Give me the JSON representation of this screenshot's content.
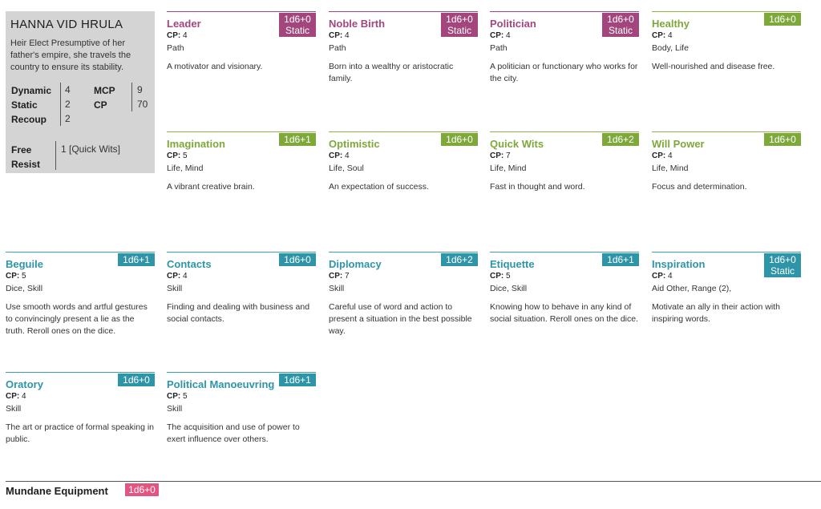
{
  "character": {
    "name": "HANNA VID HRULA",
    "description": "Heir Elect Presumptive of her father's empire, she travels the country to ensure its stability.",
    "stats": {
      "dynamic_label": "Dynamic",
      "dynamic": "4",
      "static_label": "Static",
      "static": "2",
      "recoup_label": "Recoup",
      "recoup": "2",
      "mcp_label": "MCP",
      "mcp": "9",
      "cp_label": "CP",
      "cp": "70"
    },
    "free_resist_label_1": "Free",
    "free_resist_label_2": "Resist",
    "free_resist": "1 [Quick Wits]"
  },
  "cp_label": "CP:",
  "cards": [
    {
      "title": "Leader",
      "badge_1": "1d6+0",
      "badge_2": "Static",
      "cp": "4",
      "tags": "Path",
      "desc": "A motivator and visionary.",
      "color": "#a3467e"
    },
    {
      "title": "Noble Birth",
      "badge_1": "1d6+0",
      "badge_2": "Static",
      "cp": "4",
      "tags": "Path",
      "desc": "Born into a wealthy or aristocratic family.",
      "color": "#a3467e"
    },
    {
      "title": "Politician",
      "badge_1": "1d6+0",
      "badge_2": "Static",
      "cp": "4",
      "tags": "Path",
      "desc": "A politician or functionary who works for the city.",
      "color": "#a3467e"
    },
    {
      "title": "Healthy",
      "badge_1": "1d6+0",
      "badge_2": "",
      "cp": "4",
      "tags": "Body, Life",
      "desc": "Well-nourished and disease free.",
      "color": "#7ea83a"
    },
    {
      "title": "Imagination",
      "badge_1": "1d6+1",
      "badge_2": "",
      "cp": "5",
      "tags": "Life, Mind",
      "desc": "A vibrant creative brain.",
      "color": "#7ea83a"
    },
    {
      "title": "Optimistic",
      "badge_1": "1d6+0",
      "badge_2": "",
      "cp": "4",
      "tags": "Life, Soul",
      "desc": "An expectation of success.",
      "color": "#7ea83a"
    },
    {
      "title": "Quick Wits",
      "badge_1": "1d6+2",
      "badge_2": "",
      "cp": "7",
      "tags": "Life, Mind",
      "desc": "Fast in thought and word.",
      "color": "#7ea83a"
    },
    {
      "title": "Will Power",
      "badge_1": "1d6+0",
      "badge_2": "",
      "cp": "4",
      "tags": "Life, Mind",
      "desc": "Focus and determination.",
      "color": "#7ea83a"
    },
    {
      "title": "Beguile",
      "badge_1": "1d6+1",
      "badge_2": "",
      "cp": "5",
      "tags": "Dice, Skill",
      "desc": "Use smooth words and artful gestures to convincingly present a lie as the truth. Reroll ones on the dice.",
      "color": "#2e95a8"
    },
    {
      "title": "Contacts",
      "badge_1": "1d6+0",
      "badge_2": "",
      "cp": "4",
      "tags": "Skill",
      "desc": "Finding and dealing with business and social contacts.",
      "color": "#2e95a8"
    },
    {
      "title": "Diplomacy",
      "badge_1": "1d6+2",
      "badge_2": "",
      "cp": "7",
      "tags": "Skill",
      "desc": "Careful use of word and action to present a situation in the best possible way.",
      "color": "#2e95a8"
    },
    {
      "title": "Etiquette",
      "badge_1": "1d6+1",
      "badge_2": "",
      "cp": "5",
      "tags": "Dice, Skill",
      "desc": "Knowing how to behave in any kind of social situation. Reroll ones on the dice.",
      "color": "#2e95a8"
    },
    {
      "title": "Inspiration",
      "badge_1": "1d6+0",
      "badge_2": "Static",
      "cp": "4",
      "tags": "Aid Other, Range (2),",
      "desc": "Motivate an ally in their action with inspiring words.",
      "color": "#2e95a8"
    },
    {
      "title": "Oratory",
      "badge_1": "1d6+0",
      "badge_2": "",
      "cp": "4",
      "tags": "Skill",
      "desc": "The art or practice of formal speaking in public.",
      "color": "#2e95a8"
    },
    {
      "title": "Political Manoeuvring",
      "badge_1": "1d6+1",
      "badge_2": "",
      "cp": "5",
      "tags": "Skill",
      "desc": "The acquisition and use of power to exert influence over others.",
      "color": "#2e95a8"
    }
  ],
  "equipment": {
    "label": "Mundane Equipment",
    "badge": "1d6+0",
    "color": "#e35580"
  }
}
